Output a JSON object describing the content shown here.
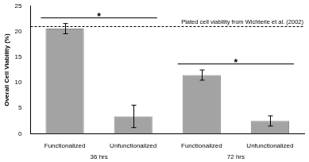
{
  "chart_data": {
    "type": "bar",
    "categories": [
      "Functionalized",
      "Unfunctionalized",
      "Functionalized",
      "Unfunctionalized"
    ],
    "groups": [
      "36 hrs",
      "72 hrs"
    ],
    "values": [
      20.6,
      3.4,
      11.5,
      2.5
    ],
    "errors": [
      1.0,
      2.2,
      1.0,
      1.0
    ],
    "color": "#a3a3a3",
    "y_label": "Overall Cell Viability (%)",
    "ylim": [
      0,
      25
    ],
    "yticks": [
      0,
      5,
      10,
      15,
      20,
      25
    ],
    "grid": false,
    "reference_line": {
      "value": 21,
      "label": "Plated cell viability from Wichterle et al. (2002)",
      "line_style": "dashed"
    },
    "significance": [
      {
        "group": "36 hrs",
        "label": "*"
      },
      {
        "group": "72 hrs",
        "label": "*"
      }
    ]
  }
}
